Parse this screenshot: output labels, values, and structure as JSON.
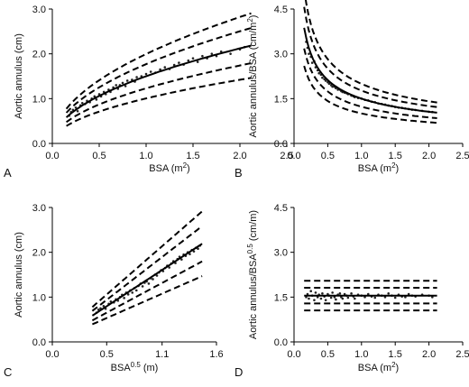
{
  "chart_data": [
    {
      "panel_label": "A",
      "type": "scatter",
      "xlabel": "BSA (m",
      "xlabel_sup": "2",
      "xlabel_tail": ")",
      "ylabel": "Aortic annulus (cm)",
      "xlim": [
        0,
        2.5
      ],
      "ylim": [
        0,
        3.0
      ],
      "xticks": [
        "0.0",
        "0.5",
        "1.0",
        "1.5",
        "2.0",
        "2.5"
      ],
      "yticks": [
        "0.0",
        "1.0",
        "2.0",
        "3.0"
      ],
      "model": {
        "form": "power",
        "a": 1.5,
        "b": 0.5
      },
      "x_range": [
        0.15,
        2.12
      ],
      "bands": [
        0.18,
        0.33
      ],
      "points": [
        [
          0.18,
          0.62
        ],
        [
          0.2,
          0.7
        ],
        [
          0.22,
          0.75
        ],
        [
          0.25,
          0.8
        ],
        [
          0.27,
          0.72
        ],
        [
          0.3,
          0.85
        ],
        [
          0.32,
          0.9
        ],
        [
          0.35,
          0.88
        ],
        [
          0.37,
          0.95
        ],
        [
          0.4,
          0.92
        ],
        [
          0.42,
          1.0
        ],
        [
          0.45,
          1.05
        ],
        [
          0.47,
          0.98
        ],
        [
          0.5,
          1.1
        ],
        [
          0.52,
          1.05
        ],
        [
          0.55,
          1.15
        ],
        [
          0.57,
          1.1
        ],
        [
          0.6,
          1.2
        ],
        [
          0.62,
          1.15
        ],
        [
          0.65,
          1.25
        ],
        [
          0.68,
          1.3
        ],
        [
          0.7,
          1.22
        ],
        [
          0.72,
          1.3
        ],
        [
          0.75,
          1.35
        ],
        [
          0.78,
          1.28
        ],
        [
          0.8,
          1.4
        ],
        [
          0.85,
          1.42
        ],
        [
          0.88,
          1.38
        ],
        [
          0.9,
          1.48
        ],
        [
          0.95,
          1.5
        ],
        [
          1.0,
          1.55
        ],
        [
          1.05,
          1.6
        ],
        [
          1.1,
          1.58
        ],
        [
          1.15,
          1.65
        ],
        [
          1.2,
          1.7
        ],
        [
          1.25,
          1.66
        ],
        [
          1.3,
          1.75
        ],
        [
          1.35,
          1.8
        ],
        [
          1.4,
          1.76
        ],
        [
          1.45,
          1.85
        ],
        [
          1.5,
          1.9
        ],
        [
          1.55,
          1.82
        ],
        [
          1.6,
          1.95
        ],
        [
          1.65,
          1.9
        ],
        [
          1.7,
          2.0
        ],
        [
          1.75,
          1.95
        ],
        [
          1.8,
          2.05
        ],
        [
          1.9,
          2.0
        ],
        [
          2.0,
          2.1
        ],
        [
          2.05,
          2.15
        ]
      ]
    },
    {
      "panel_label": "B",
      "type": "scatter",
      "xlabel": "BSA (m",
      "xlabel_sup": "2",
      "xlabel_tail": ")",
      "ylabel": "Aortic annulus/BSA (cm/m",
      "ylabel_sup": "2",
      "ylabel_tail": ")",
      "xlim": [
        0,
        2.5
      ],
      "ylim": [
        0,
        4.5
      ],
      "xticks": [
        "0.0",
        "0.5",
        "1.0",
        "1.5",
        "2.0",
        "2.5"
      ],
      "yticks": [
        "0.0",
        "1.5",
        "3.0",
        "4.5"
      ],
      "model": {
        "form": "power",
        "a": 1.5,
        "b": -0.5
      },
      "x_range": [
        0.15,
        2.12
      ],
      "bands": [
        0.18,
        0.33
      ],
      "points": [
        [
          0.18,
          3.4
        ],
        [
          0.2,
          3.2
        ],
        [
          0.22,
          3.0
        ],
        [
          0.25,
          2.9
        ],
        [
          0.27,
          2.7
        ],
        [
          0.3,
          2.75
        ],
        [
          0.32,
          2.55
        ],
        [
          0.35,
          2.45
        ],
        [
          0.37,
          2.35
        ],
        [
          0.4,
          2.3
        ],
        [
          0.42,
          2.2
        ],
        [
          0.45,
          2.15
        ],
        [
          0.47,
          2.1
        ],
        [
          0.5,
          2.05
        ],
        [
          0.52,
          2.0
        ],
        [
          0.55,
          1.95
        ],
        [
          0.57,
          1.9
        ],
        [
          0.6,
          1.9
        ],
        [
          0.62,
          1.85
        ],
        [
          0.65,
          1.8
        ],
        [
          0.68,
          1.8
        ],
        [
          0.7,
          1.75
        ],
        [
          0.72,
          1.72
        ],
        [
          0.75,
          1.7
        ],
        [
          0.78,
          1.68
        ],
        [
          0.8,
          1.65
        ],
        [
          0.85,
          1.6
        ],
        [
          0.88,
          1.58
        ],
        [
          0.9,
          1.55
        ],
        [
          0.95,
          1.52
        ],
        [
          1.0,
          1.5
        ],
        [
          1.05,
          1.46
        ],
        [
          1.1,
          1.44
        ],
        [
          1.15,
          1.4
        ],
        [
          1.2,
          1.38
        ],
        [
          1.25,
          1.34
        ],
        [
          1.3,
          1.32
        ],
        [
          1.35,
          1.3
        ],
        [
          1.4,
          1.27
        ],
        [
          1.45,
          1.25
        ],
        [
          1.5,
          1.22
        ],
        [
          1.55,
          1.2
        ],
        [
          1.6,
          1.19
        ],
        [
          1.65,
          1.17
        ],
        [
          1.7,
          1.15
        ],
        [
          1.75,
          1.13
        ],
        [
          1.8,
          1.12
        ],
        [
          1.9,
          1.09
        ],
        [
          2.0,
          1.06
        ],
        [
          2.05,
          1.05
        ]
      ]
    },
    {
      "panel_label": "C",
      "type": "scatter",
      "xlabel": "BSA",
      "xlabel_sup": "0.5",
      "xlabel_tail": " (m)",
      "ylabel": "Aortic annulus (cm)",
      "xlim": [
        0,
        1.6
      ],
      "ylim": [
        0,
        3.0
      ],
      "xticks": [
        "0.0",
        "0.5",
        "1.1",
        "1.6"
      ],
      "xtick_values": [
        0,
        0.53,
        1.07,
        1.6
      ],
      "yticks": [
        "0.0",
        "1.0",
        "2.0",
        "3.0"
      ],
      "model": {
        "form": "linear",
        "a": 1.5,
        "b": 0
      },
      "x_range": [
        0.39,
        1.46
      ],
      "bands": [
        0.18,
        0.33
      ],
      "points": [
        [
          0.43,
          0.65
        ],
        [
          0.45,
          0.72
        ],
        [
          0.47,
          0.75
        ],
        [
          0.5,
          0.8
        ],
        [
          0.52,
          0.74
        ],
        [
          0.55,
          0.85
        ],
        [
          0.57,
          0.9
        ],
        [
          0.6,
          0.88
        ],
        [
          0.62,
          0.95
        ],
        [
          0.64,
          0.92
        ],
        [
          0.66,
          1.0
        ],
        [
          0.68,
          1.05
        ],
        [
          0.7,
          0.98
        ],
        [
          0.72,
          1.1
        ],
        [
          0.74,
          1.06
        ],
        [
          0.76,
          1.15
        ],
        [
          0.78,
          1.1
        ],
        [
          0.8,
          1.2
        ],
        [
          0.82,
          1.15
        ],
        [
          0.84,
          1.25
        ],
        [
          0.86,
          1.3
        ],
        [
          0.88,
          1.24
        ],
        [
          0.9,
          1.32
        ],
        [
          0.92,
          1.35
        ],
        [
          0.94,
          1.3
        ],
        [
          0.96,
          1.42
        ],
        [
          0.98,
          1.4
        ],
        [
          1.0,
          1.5
        ],
        [
          1.02,
          1.48
        ],
        [
          1.04,
          1.55
        ],
        [
          1.06,
          1.6
        ],
        [
          1.08,
          1.58
        ],
        [
          1.1,
          1.65
        ],
        [
          1.12,
          1.7
        ],
        [
          1.14,
          1.66
        ],
        [
          1.16,
          1.75
        ],
        [
          1.18,
          1.8
        ],
        [
          1.2,
          1.76
        ],
        [
          1.22,
          1.85
        ],
        [
          1.24,
          1.9
        ],
        [
          1.26,
          1.84
        ],
        [
          1.28,
          1.95
        ],
        [
          1.3,
          1.92
        ],
        [
          1.32,
          2.0
        ],
        [
          1.34,
          1.96
        ],
        [
          1.36,
          2.05
        ],
        [
          1.38,
          2.02
        ],
        [
          1.4,
          2.1
        ],
        [
          1.42,
          2.08
        ],
        [
          1.44,
          2.15
        ]
      ]
    },
    {
      "panel_label": "D",
      "type": "scatter",
      "xlabel": "BSA (m",
      "xlabel_sup": "2",
      "xlabel_tail": ")",
      "ylabel": "Aortic annulus/BSA",
      "ylabel_sup": "0.5",
      "ylabel_tail": " (cm/m)",
      "xlim": [
        0,
        2.5
      ],
      "ylim": [
        0,
        4.5
      ],
      "xticks": [
        "0.0",
        "0.5",
        "1.0",
        "1.5",
        "2.0",
        "2.5"
      ],
      "yticks": [
        "0.0",
        "1.5",
        "3.0",
        "4.5"
      ],
      "model": {
        "form": "constant",
        "a": 1.55,
        "b": 0
      },
      "x_range": [
        0.15,
        2.12
      ],
      "bands": [
        0.17,
        0.32
      ],
      "points": [
        [
          0.18,
          1.5
        ],
        [
          0.2,
          1.6
        ],
        [
          0.22,
          1.45
        ],
        [
          0.25,
          1.7
        ],
        [
          0.27,
          1.55
        ],
        [
          0.3,
          1.4
        ],
        [
          0.32,
          1.65
        ],
        [
          0.35,
          1.5
        ],
        [
          0.37,
          1.58
        ],
        [
          0.4,
          1.45
        ],
        [
          0.42,
          1.62
        ],
        [
          0.45,
          1.52
        ],
        [
          0.47,
          1.4
        ],
        [
          0.5,
          1.6
        ],
        [
          0.52,
          1.55
        ],
        [
          0.55,
          1.48
        ],
        [
          0.57,
          1.65
        ],
        [
          0.6,
          1.5
        ],
        [
          0.62,
          1.42
        ],
        [
          0.65,
          1.58
        ],
        [
          0.68,
          1.62
        ],
        [
          0.7,
          1.5
        ],
        [
          0.72,
          1.45
        ],
        [
          0.75,
          1.6
        ],
        [
          0.78,
          1.55
        ],
        [
          0.8,
          1.48
        ],
        [
          0.85,
          1.62
        ],
        [
          0.88,
          1.52
        ],
        [
          0.9,
          1.45
        ],
        [
          0.95,
          1.58
        ],
        [
          1.0,
          1.55
        ],
        [
          1.05,
          1.5
        ],
        [
          1.1,
          1.6
        ],
        [
          1.15,
          1.52
        ],
        [
          1.2,
          1.48
        ],
        [
          1.25,
          1.58
        ],
        [
          1.3,
          1.55
        ],
        [
          1.35,
          1.5
        ],
        [
          1.4,
          1.62
        ],
        [
          1.45,
          1.55
        ],
        [
          1.5,
          1.48
        ],
        [
          1.55,
          1.58
        ],
        [
          1.6,
          1.52
        ],
        [
          1.65,
          1.5
        ],
        [
          1.7,
          1.6
        ],
        [
          1.75,
          1.55
        ],
        [
          1.8,
          1.52
        ],
        [
          1.9,
          1.58
        ],
        [
          2.0,
          1.55
        ],
        [
          2.05,
          1.5
        ]
      ]
    }
  ]
}
